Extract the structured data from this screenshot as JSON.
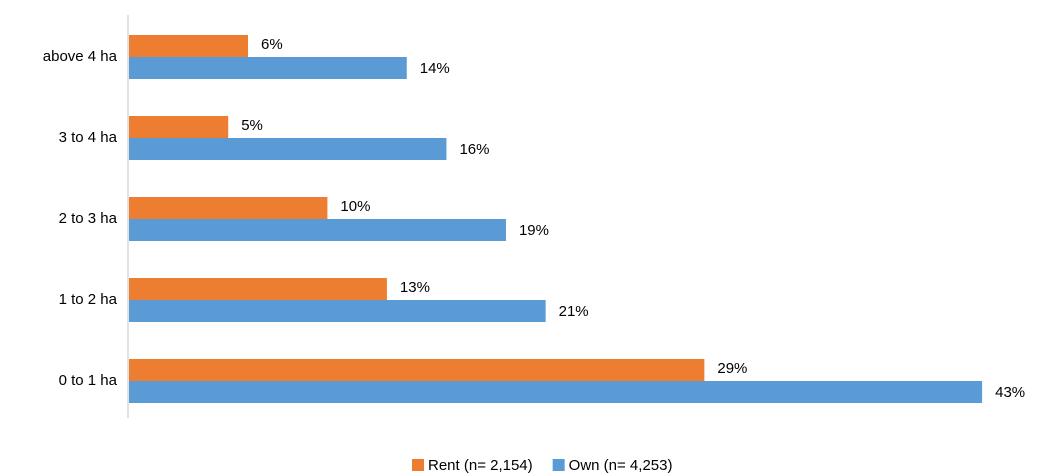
{
  "chart_data": {
    "type": "bar",
    "orientation": "horizontal",
    "categories": [
      "above 4 ha",
      "3 to 4 ha",
      "2 to 3 ha",
      "1 to 2 ha",
      "0 to 1 ha"
    ],
    "series": [
      {
        "name": "Rent (n= 2,154)",
        "color": "#ed7d31",
        "values": [
          6,
          5,
          10,
          13,
          29
        ],
        "value_labels": [
          "6%",
          "5%",
          "10%",
          "13%",
          "29%"
        ]
      },
      {
        "name": "Own (n= 4,253)",
        "color": "#5b9bd5",
        "values": [
          14,
          16,
          19,
          21,
          43
        ],
        "value_labels": [
          "14%",
          "16%",
          "19%",
          "21%",
          "43%"
        ]
      }
    ],
    "legend": "bottom"
  }
}
